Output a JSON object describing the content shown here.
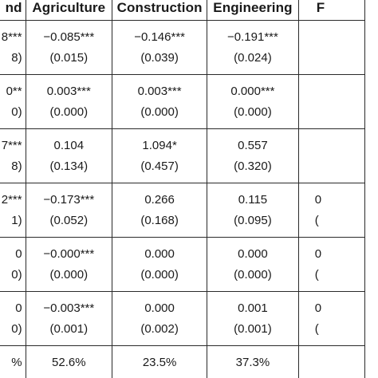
{
  "headers": [
    "nd",
    "Agriculture",
    "Construction",
    "Engineering",
    "F"
  ],
  "rows": [
    {
      "cells": [
        [
          "8***",
          "8)"
        ],
        [
          "−0.085***",
          "(0.015)"
        ],
        [
          "−0.146***",
          "(0.039)"
        ],
        [
          "−0.191***",
          "(0.024)"
        ],
        [
          "",
          ""
        ]
      ]
    },
    {
      "cells": [
        [
          "0**",
          "0)"
        ],
        [
          "0.003***",
          "(0.000)"
        ],
        [
          "0.003***",
          "(0.000)"
        ],
        [
          "0.000***",
          "(0.000)"
        ],
        [
          "",
          ""
        ]
      ]
    },
    {
      "cells": [
        [
          "7***",
          "8)"
        ],
        [
          "0.104",
          "(0.134)"
        ],
        [
          "1.094*",
          "(0.457)"
        ],
        [
          "0.557",
          "(0.320)"
        ],
        [
          "",
          ""
        ]
      ]
    },
    {
      "cells": [
        [
          "2***",
          "1)"
        ],
        [
          "−0.173***",
          "(0.052)"
        ],
        [
          "0.266",
          "(0.168)"
        ],
        [
          "0.115",
          "(0.095)"
        ],
        [
          "0",
          "("
        ]
      ]
    },
    {
      "cells": [
        [
          "0",
          "0)"
        ],
        [
          "−0.000***",
          "(0.000)"
        ],
        [
          "0.000",
          "(0.000)"
        ],
        [
          "0.000",
          "(0.000)"
        ],
        [
          "0",
          "("
        ]
      ]
    },
    {
      "cells": [
        [
          "0",
          "0)"
        ],
        [
          "−0.003***",
          "(0.001)"
        ],
        [
          "0.000",
          "(0.002)"
        ],
        [
          "0.001",
          "(0.001)"
        ],
        [
          "0",
          "("
        ]
      ]
    }
  ],
  "last_row": [
    "%",
    "52.6%",
    "23.5%",
    "37.3%",
    ""
  ]
}
